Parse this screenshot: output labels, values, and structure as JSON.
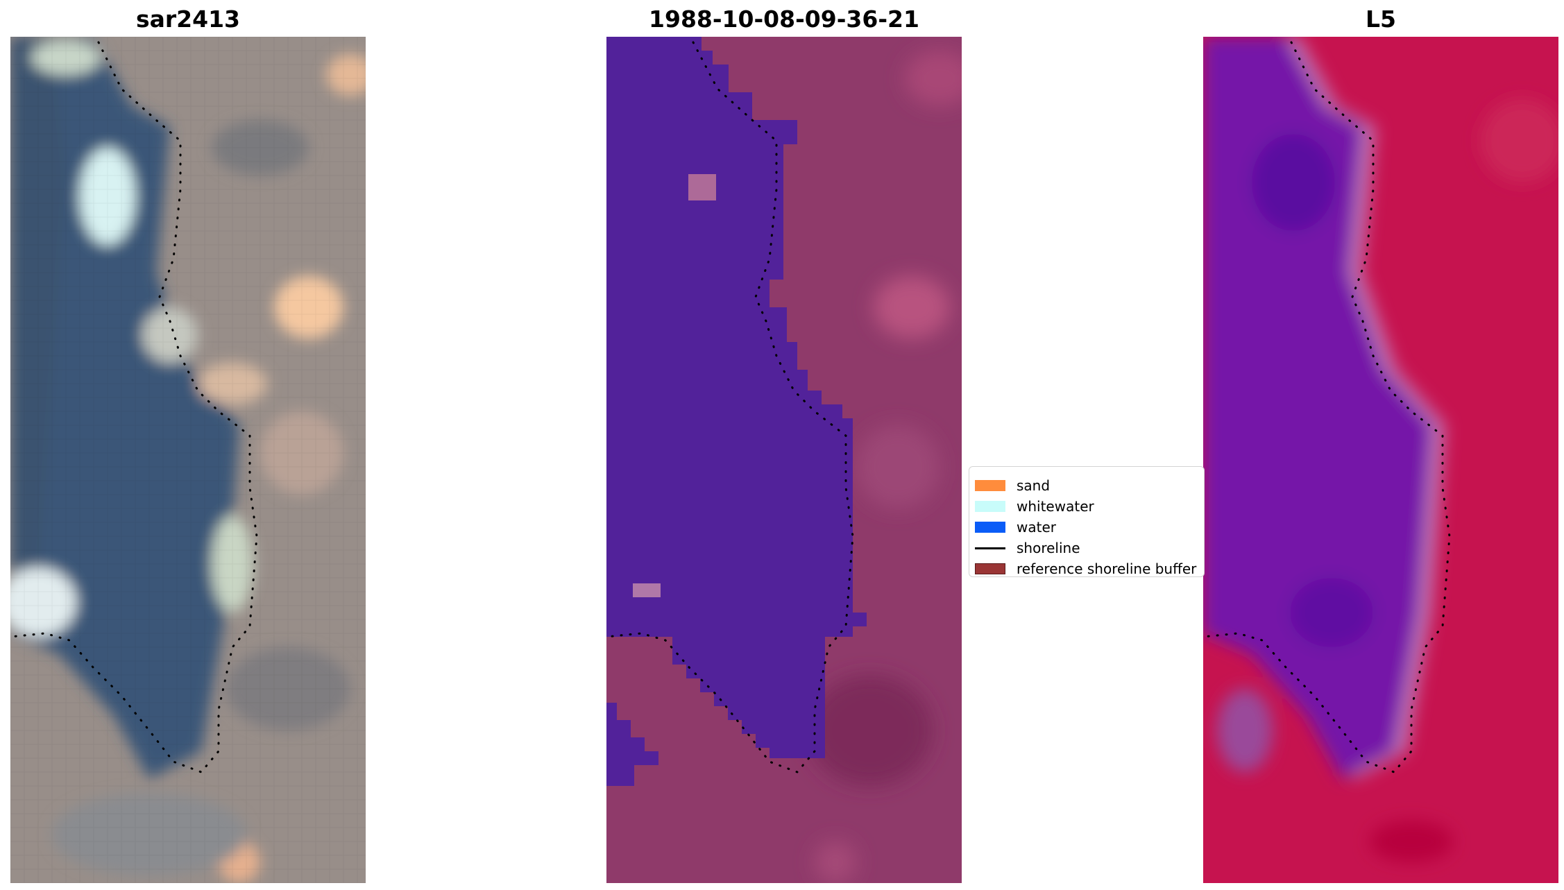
{
  "panels": [
    {
      "title": "sar2413"
    },
    {
      "title": "1988-10-08-09-36-21"
    },
    {
      "title": "L5"
    }
  ],
  "legend": {
    "items": [
      {
        "label": "sand",
        "color": "#ff8c3c"
      },
      {
        "label": "whitewater",
        "color": "#c8fcfa"
      },
      {
        "label": "water",
        "color": "#0a5cf7"
      },
      {
        "label": "shoreline",
        "color": "#000000",
        "type": "line"
      },
      {
        "label": "reference shoreline buffer",
        "color": "#9a3535"
      }
    ]
  },
  "colors": {
    "rgb_land": "#9a8f8a",
    "rgb_water": "#3a5778",
    "classified_water": "#52229a",
    "classified_land": "#8f3a6a",
    "index_water": "#7419a8",
    "index_land": "#c6134f"
  }
}
